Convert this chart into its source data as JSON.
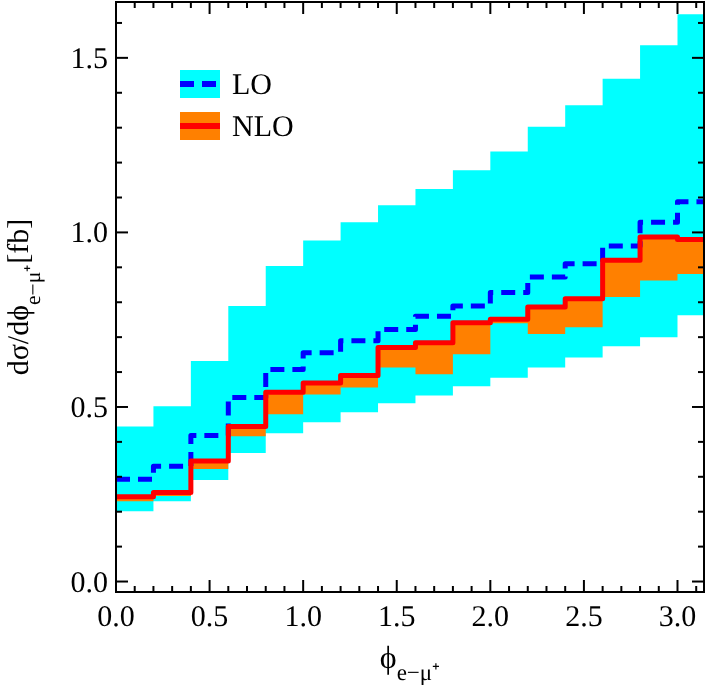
{
  "chart_data": {
    "type": "step",
    "xlabel": "ϕ$_{e−μ⁺}$",
    "ylabel": "dσ/dϕ$_{e−μ⁺}$[fb]",
    "x": [
      0,
      0.2,
      0.4,
      0.6,
      0.8,
      1.0,
      1.2,
      1.4,
      1.6,
      1.8,
      2.0,
      2.2,
      2.4,
      2.6,
      2.8,
      3.0,
      3.1416
    ],
    "xlim": [
      0,
      3.1416
    ],
    "ylim": [
      -0.03,
      1.66
    ],
    "xticks": [
      {
        "value": 0,
        "label": "0.0"
      },
      {
        "value": 0.5,
        "label": "0.5"
      },
      {
        "value": 1,
        "label": "1.0"
      },
      {
        "value": 1.5,
        "label": "1.5"
      },
      {
        "value": 2,
        "label": "2.0"
      },
      {
        "value": 2.5,
        "label": "2.5"
      },
      {
        "value": 3,
        "label": "3.0"
      },
      {
        "value": 0.1,
        "label": null
      },
      {
        "value": 0.2,
        "label": null
      },
      {
        "value": 0.3,
        "label": null
      },
      {
        "value": 0.4,
        "label": null
      },
      {
        "value": 0.6,
        "label": null
      },
      {
        "value": 0.7,
        "label": null
      },
      {
        "value": 0.8,
        "label": null
      },
      {
        "value": 0.9,
        "label": null
      },
      {
        "value": 1.1,
        "label": null
      },
      {
        "value": 1.2,
        "label": null
      },
      {
        "value": 1.3,
        "label": null
      },
      {
        "value": 1.4,
        "label": null
      },
      {
        "value": 1.6,
        "label": null
      },
      {
        "value": 1.7,
        "label": null
      },
      {
        "value": 1.8,
        "label": null
      },
      {
        "value": 1.9,
        "label": null
      },
      {
        "value": 2.1,
        "label": null
      },
      {
        "value": 2.2,
        "label": null
      },
      {
        "value": 2.3,
        "label": null
      },
      {
        "value": 2.4,
        "label": null
      },
      {
        "value": 2.6,
        "label": null
      },
      {
        "value": 2.7,
        "label": null
      },
      {
        "value": 2.8,
        "label": null
      },
      {
        "value": 2.9,
        "label": null
      },
      {
        "value": 3.1,
        "label": null
      }
    ],
    "yticks": [
      {
        "value": 0,
        "label": "0.0"
      },
      {
        "value": 0.5,
        "label": "0.5"
      },
      {
        "value": 1,
        "label": "1.0"
      },
      {
        "value": 1.5,
        "label": "1.5"
      },
      {
        "value": 0.1,
        "label": null
      },
      {
        "value": 0.2,
        "label": null
      },
      {
        "value": 0.3,
        "label": null
      },
      {
        "value": 0.4,
        "label": null
      },
      {
        "value": 0.6,
        "label": null
      },
      {
        "value": 0.7,
        "label": null
      },
      {
        "value": 0.8,
        "label": null
      },
      {
        "value": 0.9,
        "label": null
      },
      {
        "value": 1.1,
        "label": null
      },
      {
        "value": 1.2,
        "label": null
      },
      {
        "value": 1.3,
        "label": null
      },
      {
        "value": 1.4,
        "label": null
      },
      {
        "value": 1.6,
        "label": null
      }
    ],
    "series": [
      {
        "name": "LO",
        "color": "#0000ff",
        "line_style": "dashed",
        "values": [
          0.293,
          0.33,
          0.418,
          0.527,
          0.607,
          0.655,
          0.69,
          0.722,
          0.76,
          0.789,
          0.828,
          0.872,
          0.91,
          0.961,
          1.029,
          1.088,
          1.088
        ],
        "lower": [
          0.201,
          0.23,
          0.291,
          0.368,
          0.425,
          0.456,
          0.485,
          0.511,
          0.533,
          0.559,
          0.584,
          0.613,
          0.642,
          0.674,
          0.7,
          0.763,
          0.763
        ],
        "upper": [
          0.444,
          0.502,
          0.632,
          0.789,
          0.904,
          0.977,
          1.029,
          1.078,
          1.124,
          1.178,
          1.232,
          1.303,
          1.364,
          1.44,
          1.536,
          1.625,
          1.625
        ]
      },
      {
        "name": "NLO",
        "color": "#ff0000",
        "line_style": "solid",
        "values": [
          0.243,
          0.255,
          0.345,
          0.444,
          0.542,
          0.569,
          0.59,
          0.67,
          0.684,
          0.741,
          0.751,
          0.786,
          0.81,
          0.92,
          0.987,
          0.98,
          0.98
        ],
        "lower": [
          0.23,
          0.245,
          0.322,
          0.416,
          0.479,
          0.536,
          0.556,
          0.613,
          0.594,
          0.651,
          0.74,
          0.709,
          0.728,
          0.815,
          0.862,
          0.881,
          0.881
        ],
        "upper": [
          0.243,
          0.255,
          0.345,
          0.444,
          0.542,
          0.569,
          0.59,
          0.67,
          0.684,
          0.741,
          0.751,
          0.786,
          0.81,
          0.92,
          0.987,
          0.98,
          0.98
        ]
      }
    ],
    "legend": "top left",
    "grid": false
  }
}
